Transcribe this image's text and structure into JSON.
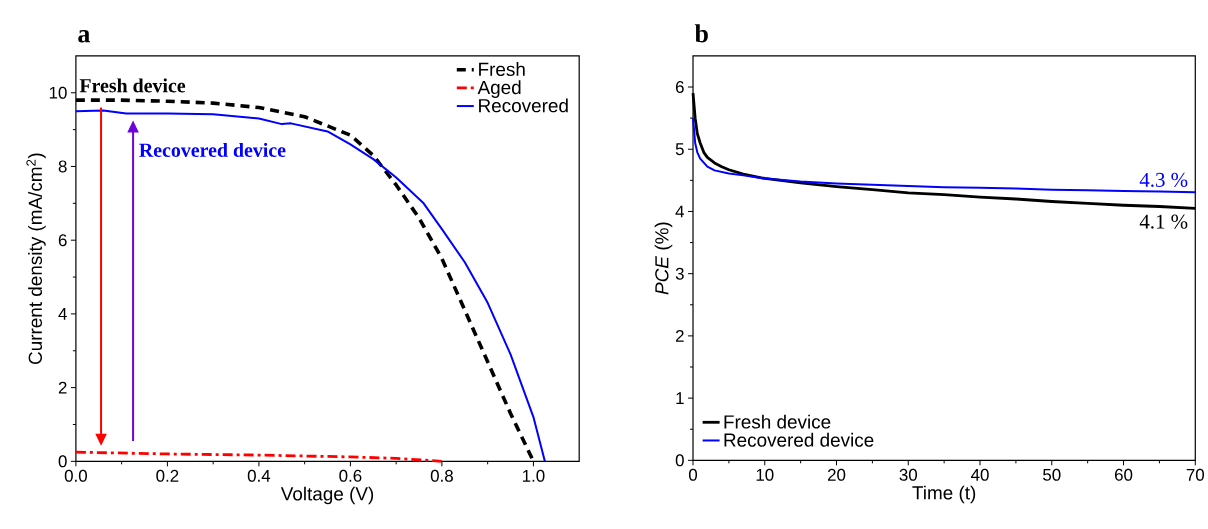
{
  "chart_data": [
    {
      "type": "line",
      "title": "a",
      "xlabel": "Voltage (V)",
      "ylabel": "Current density (mA/cm$^{2}$)",
      "xlim": [
        0,
        1.1
      ],
      "ylim": [
        0,
        11
      ],
      "xticks": [
        {
          "value": 0,
          "label": "0.0"
        },
        {
          "value": 0.2,
          "label": "0.2"
        },
        {
          "value": 0.4,
          "label": "0.4"
        },
        {
          "value": 0.6,
          "label": "0.6"
        },
        {
          "value": 0.8,
          "label": "0.8"
        },
        {
          "value": 1.0,
          "label": "1.0"
        }
      ],
      "yticks": [
        0,
        2,
        4,
        6,
        8,
        10
      ],
      "legend": "top right",
      "annotations": [
        "Fresh device",
        "Recovered device"
      ],
      "series": [
        {
          "name": "Fresh",
          "color": "#000000",
          "line_style": "dashed",
          "x": [
            0,
            0.1,
            0.2,
            0.3,
            0.4,
            0.5,
            0.6,
            0.65,
            0.7,
            0.75,
            0.8,
            0.85,
            0.9,
            0.95,
            1.0
          ],
          "values": [
            9.8,
            9.8,
            9.77,
            9.72,
            9.6,
            9.35,
            8.85,
            8.3,
            7.5,
            6.6,
            5.5,
            4.1,
            2.7,
            1.3,
            0
          ]
        },
        {
          "name": "Aged",
          "color": "#ff0000",
          "line_style": "dashdot",
          "x": [
            0,
            0.2,
            0.4,
            0.6,
            0.7,
            0.8
          ],
          "values": [
            0.25,
            0.2,
            0.17,
            0.12,
            0.08,
            0
          ]
        },
        {
          "name": "Recovered",
          "color": "#0000ff",
          "line_style": "solid",
          "x": [
            0,
            0.06,
            0.11,
            0.2,
            0.3,
            0.4,
            0.45,
            0.47,
            0.55,
            0.6,
            0.65,
            0.7,
            0.76,
            0.8,
            0.85,
            0.9,
            0.95,
            1.0,
            1.025
          ],
          "values": [
            9.5,
            9.52,
            9.44,
            9.44,
            9.42,
            9.3,
            9.15,
            9.17,
            8.95,
            8.6,
            8.2,
            7.7,
            7.0,
            6.3,
            5.4,
            4.3,
            2.9,
            1.2,
            0
          ]
        }
      ]
    },
    {
      "type": "line",
      "title": "b",
      "xlabel": "Time (t)",
      "ylabel": "*PCE* (%)",
      "xlim": [
        0,
        70
      ],
      "ylim": [
        0,
        6.5
      ],
      "xticks": [
        0,
        10,
        20,
        30,
        40,
        50,
        60,
        70
      ],
      "yticks": [
        0,
        1,
        2,
        3,
        4,
        5,
        6
      ],
      "legend": "bottom left",
      "annotations": [
        {
          "text": "4.3 %",
          "x": 70,
          "y": 4.31
        },
        {
          "text": "4.1 %",
          "x": 70,
          "y": 4.05
        }
      ],
      "series": [
        {
          "name": "Fresh device",
          "color": "#000000",
          "x": [
            0,
            0.3,
            0.6,
            1,
            1.5,
            2,
            3,
            4,
            5,
            7,
            10,
            15,
            20,
            25,
            30,
            35,
            40,
            45,
            50,
            55,
            60,
            65,
            70
          ],
          "values": [
            5.9,
            5.5,
            5.25,
            5.1,
            4.95,
            4.87,
            4.78,
            4.72,
            4.67,
            4.6,
            4.53,
            4.46,
            4.4,
            4.35,
            4.3,
            4.27,
            4.23,
            4.2,
            4.16,
            4.13,
            4.1,
            4.08,
            4.05
          ]
        },
        {
          "name": "Recovered device",
          "color": "#0000ff",
          "x": [
            0,
            0.3,
            0.6,
            1,
            2,
            3,
            5,
            7,
            10,
            15,
            20,
            25,
            30,
            35,
            40,
            45,
            50,
            55,
            60,
            65,
            70
          ],
          "values": [
            5.5,
            5.1,
            4.95,
            4.85,
            4.72,
            4.66,
            4.61,
            4.58,
            4.53,
            4.48,
            4.45,
            4.43,
            4.41,
            4.39,
            4.38,
            4.37,
            4.35,
            4.34,
            4.33,
            4.32,
            4.31
          ]
        }
      ]
    }
  ]
}
